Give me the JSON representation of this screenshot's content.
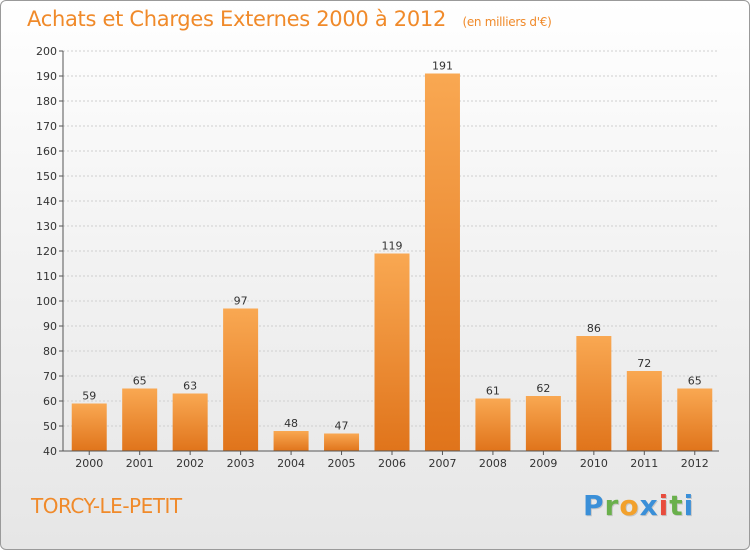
{
  "header": {
    "title": "Achats et Charges Externes 2000 à 2012",
    "subtitle": "(en milliers d'€)"
  },
  "footer": {
    "place": "TORCY-LE-PETIT",
    "logo": [
      "P",
      "r",
      "o",
      "x",
      "i",
      "t",
      "i"
    ],
    "logo_colors": [
      "#3a8fd8",
      "#6ab04c",
      "#f2a12c",
      "#3a8fd8",
      "#e84c3d",
      "#6ab04c",
      "#3a8fd8"
    ]
  },
  "colors": {
    "bar_light": "#f9a852",
    "bar_dark": "#e0741b",
    "axis": "#555555",
    "grid": "#cfcfcf",
    "text": "#333333"
  },
  "chart_data": {
    "type": "bar",
    "categories": [
      "2000",
      "2001",
      "2002",
      "2003",
      "2004",
      "2005",
      "2006",
      "2007",
      "2008",
      "2009",
      "2010",
      "2011",
      "2012"
    ],
    "values": [
      59,
      65,
      63,
      97,
      48,
      47,
      119,
      191,
      61,
      62,
      86,
      72,
      65
    ],
    "ylim": [
      40,
      200
    ],
    "yticks": [
      40,
      50,
      60,
      70,
      80,
      90,
      100,
      110,
      120,
      130,
      140,
      150,
      160,
      170,
      180,
      190,
      200
    ],
    "grid": true,
    "legend": "none"
  }
}
